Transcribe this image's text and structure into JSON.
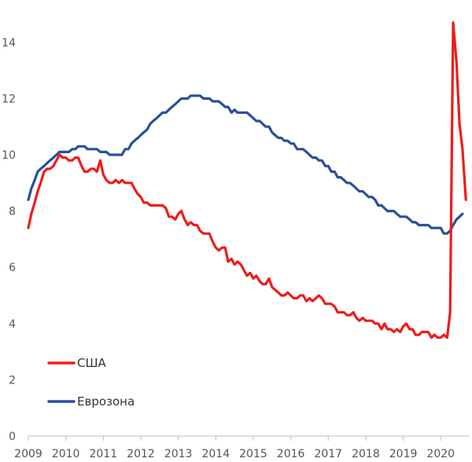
{
  "chart_data": {
    "type": "line",
    "title": "",
    "xlabel": "",
    "ylabel": "",
    "xlim": [
      2009,
      2020.75
    ],
    "ylim": [
      0,
      15
    ],
    "x_ticks": [
      2009,
      2010,
      2011,
      2012,
      2013,
      2014,
      2015,
      2016,
      2017,
      2018,
      2019,
      2020
    ],
    "x_tick_labels": [
      "2009",
      "2010",
      "2011",
      "2012",
      "2013",
      "2014",
      "2015",
      "2016",
      "2017",
      "2018",
      "2019",
      "2020"
    ],
    "y_ticks": [
      0,
      2,
      4,
      6,
      8,
      10,
      12,
      14
    ],
    "y_tick_labels": [
      "0",
      "2",
      "4",
      "6",
      "8",
      "10",
      "12",
      "14"
    ],
    "grid": false,
    "legend_position": "bottom-left",
    "series": [
      {
        "name": "США",
        "color": "#ee1c1c",
        "points": [
          [
            2009.0,
            7.4
          ],
          [
            2009.08,
            7.9
          ],
          [
            2009.17,
            8.3
          ],
          [
            2009.25,
            8.7
          ],
          [
            2009.33,
            9.0
          ],
          [
            2009.42,
            9.4
          ],
          [
            2009.5,
            9.5
          ],
          [
            2009.58,
            9.5
          ],
          [
            2009.67,
            9.6
          ],
          [
            2009.75,
            9.8
          ],
          [
            2009.83,
            10.0
          ],
          [
            2009.92,
            9.9
          ],
          [
            2010.0,
            9.9
          ],
          [
            2010.08,
            9.8
          ],
          [
            2010.17,
            9.8
          ],
          [
            2010.25,
            9.9
          ],
          [
            2010.33,
            9.9
          ],
          [
            2010.42,
            9.6
          ],
          [
            2010.5,
            9.4
          ],
          [
            2010.58,
            9.4
          ],
          [
            2010.67,
            9.5
          ],
          [
            2010.75,
            9.5
          ],
          [
            2010.83,
            9.4
          ],
          [
            2010.92,
            9.8
          ],
          [
            2011.0,
            9.3
          ],
          [
            2011.08,
            9.1
          ],
          [
            2011.17,
            9.0
          ],
          [
            2011.25,
            9.0
          ],
          [
            2011.33,
            9.1
          ],
          [
            2011.42,
            9.0
          ],
          [
            2011.5,
            9.1
          ],
          [
            2011.58,
            9.0
          ],
          [
            2011.67,
            9.0
          ],
          [
            2011.75,
            9.0
          ],
          [
            2011.83,
            8.8
          ],
          [
            2011.92,
            8.6
          ],
          [
            2012.0,
            8.5
          ],
          [
            2012.08,
            8.3
          ],
          [
            2012.17,
            8.3
          ],
          [
            2012.25,
            8.2
          ],
          [
            2012.33,
            8.2
          ],
          [
            2012.42,
            8.2
          ],
          [
            2012.5,
            8.2
          ],
          [
            2012.58,
            8.2
          ],
          [
            2012.67,
            8.1
          ],
          [
            2012.75,
            7.8
          ],
          [
            2012.83,
            7.8
          ],
          [
            2012.92,
            7.7
          ],
          [
            2013.0,
            7.9
          ],
          [
            2013.08,
            8.0
          ],
          [
            2013.17,
            7.7
          ],
          [
            2013.25,
            7.5
          ],
          [
            2013.33,
            7.6
          ],
          [
            2013.42,
            7.5
          ],
          [
            2013.5,
            7.5
          ],
          [
            2013.58,
            7.3
          ],
          [
            2013.67,
            7.2
          ],
          [
            2013.75,
            7.2
          ],
          [
            2013.83,
            7.2
          ],
          [
            2013.92,
            6.9
          ],
          [
            2014.0,
            6.7
          ],
          [
            2014.08,
            6.6
          ],
          [
            2014.17,
            6.7
          ],
          [
            2014.25,
            6.7
          ],
          [
            2014.33,
            6.2
          ],
          [
            2014.42,
            6.3
          ],
          [
            2014.5,
            6.1
          ],
          [
            2014.58,
            6.2
          ],
          [
            2014.67,
            6.1
          ],
          [
            2014.75,
            5.9
          ],
          [
            2014.83,
            5.7
          ],
          [
            2014.92,
            5.8
          ],
          [
            2015.0,
            5.6
          ],
          [
            2015.08,
            5.7
          ],
          [
            2015.17,
            5.5
          ],
          [
            2015.25,
            5.4
          ],
          [
            2015.33,
            5.4
          ],
          [
            2015.42,
            5.6
          ],
          [
            2015.5,
            5.3
          ],
          [
            2015.58,
            5.2
          ],
          [
            2015.67,
            5.1
          ],
          [
            2015.75,
            5.0
          ],
          [
            2015.83,
            5.0
          ],
          [
            2015.92,
            5.1
          ],
          [
            2016.0,
            5.0
          ],
          [
            2016.08,
            4.9
          ],
          [
            2016.17,
            4.9
          ],
          [
            2016.25,
            5.0
          ],
          [
            2016.33,
            5.0
          ],
          [
            2016.42,
            4.8
          ],
          [
            2016.5,
            4.9
          ],
          [
            2016.58,
            4.8
          ],
          [
            2016.67,
            4.9
          ],
          [
            2016.75,
            5.0
          ],
          [
            2016.83,
            4.9
          ],
          [
            2016.92,
            4.7
          ],
          [
            2017.0,
            4.7
          ],
          [
            2017.08,
            4.7
          ],
          [
            2017.17,
            4.6
          ],
          [
            2017.25,
            4.4
          ],
          [
            2017.33,
            4.4
          ],
          [
            2017.42,
            4.4
          ],
          [
            2017.5,
            4.3
          ],
          [
            2017.58,
            4.3
          ],
          [
            2017.67,
            4.4
          ],
          [
            2017.75,
            4.2
          ],
          [
            2017.83,
            4.1
          ],
          [
            2017.92,
            4.2
          ],
          [
            2018.0,
            4.1
          ],
          [
            2018.08,
            4.1
          ],
          [
            2018.17,
            4.1
          ],
          [
            2018.25,
            4.0
          ],
          [
            2018.33,
            4.0
          ],
          [
            2018.42,
            3.8
          ],
          [
            2018.5,
            4.0
          ],
          [
            2018.58,
            3.8
          ],
          [
            2018.67,
            3.8
          ],
          [
            2018.75,
            3.7
          ],
          [
            2018.83,
            3.8
          ],
          [
            2018.92,
            3.7
          ],
          [
            2019.0,
            3.9
          ],
          [
            2019.08,
            4.0
          ],
          [
            2019.17,
            3.8
          ],
          [
            2019.25,
            3.8
          ],
          [
            2019.33,
            3.6
          ],
          [
            2019.42,
            3.6
          ],
          [
            2019.5,
            3.7
          ],
          [
            2019.58,
            3.7
          ],
          [
            2019.67,
            3.7
          ],
          [
            2019.75,
            3.5
          ],
          [
            2019.83,
            3.6
          ],
          [
            2019.92,
            3.5
          ],
          [
            2020.0,
            3.5
          ],
          [
            2020.08,
            3.6
          ],
          [
            2020.17,
            3.5
          ],
          [
            2020.25,
            4.4
          ],
          [
            2020.33,
            14.7
          ],
          [
            2020.42,
            13.3
          ],
          [
            2020.5,
            11.1
          ],
          [
            2020.58,
            10.2
          ],
          [
            2020.67,
            8.4
          ]
        ]
      },
      {
        "name": "Еврозона",
        "color": "#2b4f9a",
        "points": [
          [
            2009.0,
            8.4
          ],
          [
            2009.08,
            8.8
          ],
          [
            2009.17,
            9.1
          ],
          [
            2009.25,
            9.4
          ],
          [
            2009.33,
            9.5
          ],
          [
            2009.42,
            9.6
          ],
          [
            2009.5,
            9.7
          ],
          [
            2009.58,
            9.8
          ],
          [
            2009.67,
            9.9
          ],
          [
            2009.75,
            10.0
          ],
          [
            2009.83,
            10.1
          ],
          [
            2009.92,
            10.1
          ],
          [
            2010.0,
            10.1
          ],
          [
            2010.08,
            10.1
          ],
          [
            2010.17,
            10.2
          ],
          [
            2010.25,
            10.2
          ],
          [
            2010.33,
            10.3
          ],
          [
            2010.42,
            10.3
          ],
          [
            2010.5,
            10.3
          ],
          [
            2010.58,
            10.2
          ],
          [
            2010.67,
            10.2
          ],
          [
            2010.75,
            10.2
          ],
          [
            2010.83,
            10.2
          ],
          [
            2010.92,
            10.1
          ],
          [
            2011.0,
            10.1
          ],
          [
            2011.08,
            10.1
          ],
          [
            2011.17,
            10.0
          ],
          [
            2011.25,
            10.0
          ],
          [
            2011.33,
            10.0
          ],
          [
            2011.42,
            10.0
          ],
          [
            2011.5,
            10.0
          ],
          [
            2011.58,
            10.2
          ],
          [
            2011.67,
            10.2
          ],
          [
            2011.75,
            10.4
          ],
          [
            2011.83,
            10.5
          ],
          [
            2011.92,
            10.6
          ],
          [
            2012.0,
            10.7
          ],
          [
            2012.08,
            10.8
          ],
          [
            2012.17,
            10.9
          ],
          [
            2012.25,
            11.1
          ],
          [
            2012.33,
            11.2
          ],
          [
            2012.42,
            11.3
          ],
          [
            2012.5,
            11.4
          ],
          [
            2012.58,
            11.5
          ],
          [
            2012.67,
            11.5
          ],
          [
            2012.75,
            11.6
          ],
          [
            2012.83,
            11.7
          ],
          [
            2012.92,
            11.8
          ],
          [
            2013.0,
            11.9
          ],
          [
            2013.08,
            12.0
          ],
          [
            2013.17,
            12.0
          ],
          [
            2013.25,
            12.0
          ],
          [
            2013.33,
            12.1
          ],
          [
            2013.42,
            12.1
          ],
          [
            2013.5,
            12.1
          ],
          [
            2013.58,
            12.1
          ],
          [
            2013.67,
            12.0
          ],
          [
            2013.75,
            12.0
          ],
          [
            2013.83,
            12.0
          ],
          [
            2013.92,
            11.9
          ],
          [
            2014.0,
            11.9
          ],
          [
            2014.08,
            11.9
          ],
          [
            2014.17,
            11.8
          ],
          [
            2014.25,
            11.7
          ],
          [
            2014.33,
            11.7
          ],
          [
            2014.42,
            11.5
          ],
          [
            2014.5,
            11.6
          ],
          [
            2014.58,
            11.5
          ],
          [
            2014.67,
            11.5
          ],
          [
            2014.75,
            11.5
          ],
          [
            2014.83,
            11.5
          ],
          [
            2014.92,
            11.4
          ],
          [
            2015.0,
            11.3
          ],
          [
            2015.08,
            11.2
          ],
          [
            2015.17,
            11.2
          ],
          [
            2015.25,
            11.1
          ],
          [
            2015.33,
            11.0
          ],
          [
            2015.42,
            11.0
          ],
          [
            2015.5,
            10.8
          ],
          [
            2015.58,
            10.7
          ],
          [
            2015.67,
            10.6
          ],
          [
            2015.75,
            10.6
          ],
          [
            2015.83,
            10.5
          ],
          [
            2015.92,
            10.5
          ],
          [
            2016.0,
            10.4
          ],
          [
            2016.08,
            10.4
          ],
          [
            2016.17,
            10.2
          ],
          [
            2016.25,
            10.2
          ],
          [
            2016.33,
            10.2
          ],
          [
            2016.42,
            10.1
          ],
          [
            2016.5,
            10.0
          ],
          [
            2016.58,
            9.9
          ],
          [
            2016.67,
            9.9
          ],
          [
            2016.75,
            9.8
          ],
          [
            2016.83,
            9.8
          ],
          [
            2016.92,
            9.6
          ],
          [
            2017.0,
            9.6
          ],
          [
            2017.08,
            9.4
          ],
          [
            2017.17,
            9.4
          ],
          [
            2017.25,
            9.2
          ],
          [
            2017.33,
            9.2
          ],
          [
            2017.42,
            9.1
          ],
          [
            2017.5,
            9.0
          ],
          [
            2017.58,
            9.0
          ],
          [
            2017.67,
            8.9
          ],
          [
            2017.75,
            8.8
          ],
          [
            2017.83,
            8.7
          ],
          [
            2017.92,
            8.7
          ],
          [
            2018.0,
            8.6
          ],
          [
            2018.08,
            8.5
          ],
          [
            2018.17,
            8.5
          ],
          [
            2018.25,
            8.4
          ],
          [
            2018.33,
            8.2
          ],
          [
            2018.42,
            8.2
          ],
          [
            2018.5,
            8.1
          ],
          [
            2018.58,
            8.0
          ],
          [
            2018.67,
            8.0
          ],
          [
            2018.75,
            8.0
          ],
          [
            2018.83,
            7.9
          ],
          [
            2018.92,
            7.8
          ],
          [
            2019.0,
            7.8
          ],
          [
            2019.08,
            7.8
          ],
          [
            2019.17,
            7.7
          ],
          [
            2019.25,
            7.6
          ],
          [
            2019.33,
            7.6
          ],
          [
            2019.42,
            7.5
          ],
          [
            2019.5,
            7.5
          ],
          [
            2019.58,
            7.5
          ],
          [
            2019.67,
            7.5
          ],
          [
            2019.75,
            7.4
          ],
          [
            2019.83,
            7.4
          ],
          [
            2019.92,
            7.4
          ],
          [
            2020.0,
            7.4
          ],
          [
            2020.08,
            7.2
          ],
          [
            2020.17,
            7.2
          ],
          [
            2020.25,
            7.3
          ],
          [
            2020.33,
            7.5
          ],
          [
            2020.42,
            7.7
          ],
          [
            2020.5,
            7.8
          ],
          [
            2020.58,
            7.9
          ]
        ]
      }
    ]
  }
}
